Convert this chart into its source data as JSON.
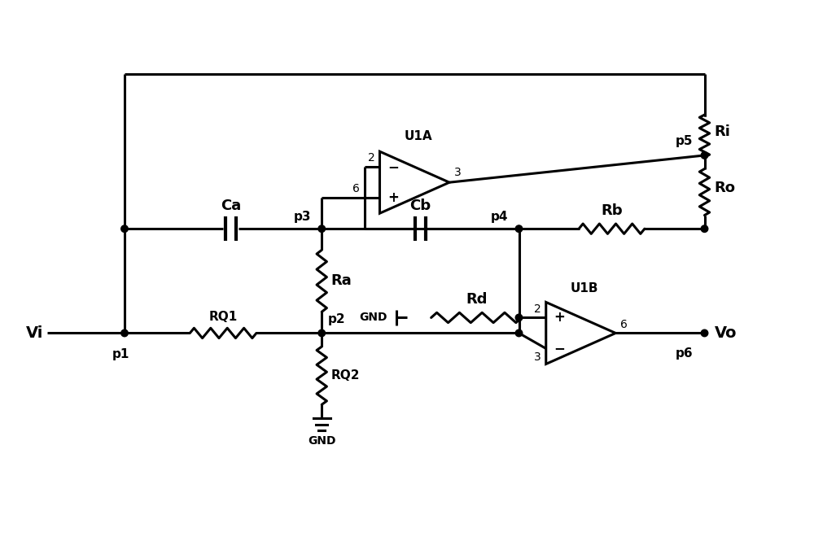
{
  "bg_color": "#ffffff",
  "line_color": "#000000",
  "lw": 2.2,
  "fig_width": 10.0,
  "fig_height": 6.65,
  "dpi": 100,
  "xlim": [
    0,
    10
  ],
  "ylim": [
    0,
    6.65
  ]
}
